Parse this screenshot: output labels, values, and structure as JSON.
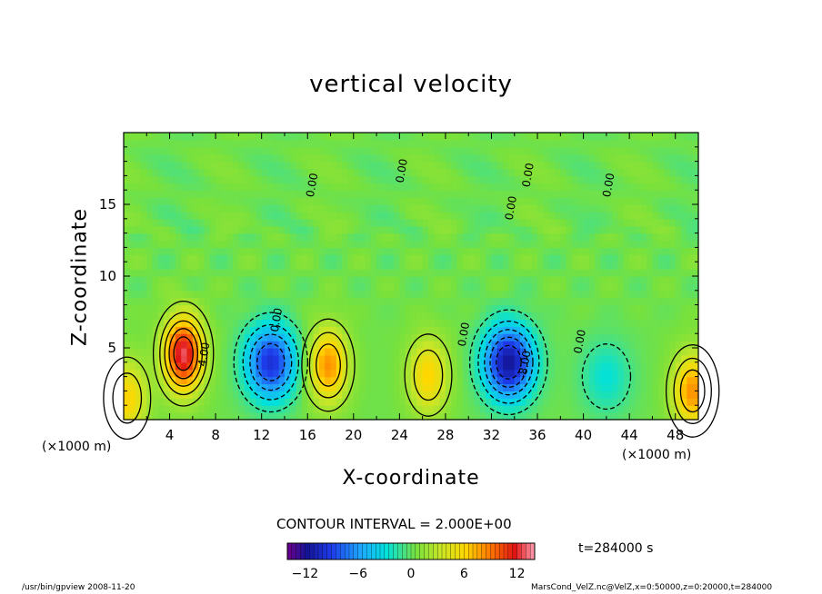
{
  "chart_data": {
    "type": "heatmap",
    "title": "vertical velocity",
    "xlabel": "X-coordinate",
    "ylabel": "Z-coordinate",
    "x_unit_left": "(×1000 m)",
    "x_unit_right": "(×1000 m)",
    "xlim": [
      0,
      50
    ],
    "ylim": [
      0,
      20
    ],
    "x_ticks": [
      4,
      8,
      12,
      16,
      20,
      24,
      28,
      32,
      36,
      40,
      44,
      48
    ],
    "y_ticks": [
      5,
      10,
      15
    ],
    "contour_interval_text": "CONTOUR INTERVAL = 2.000E+00",
    "colorbar_range": [
      -14,
      14
    ],
    "colorbar_ticks": [
      -12,
      -6,
      0,
      6,
      12
    ],
    "time_label": "t=284000 s",
    "contour_labels": [
      {
        "text": "4.00",
        "x": 7.3,
        "y": 4.5
      },
      {
        "text": "0.00",
        "x": 13.6,
        "y": 6.9
      },
      {
        "text": "0.00",
        "x": 29.9,
        "y": 5.9
      },
      {
        "text": "-8.00",
        "x": 35.2,
        "y": 3.8
      },
      {
        "text": "0.00",
        "x": 40.0,
        "y": 5.4
      },
      {
        "text": "0.00",
        "x": 24.5,
        "y": 17.3
      },
      {
        "text": "0.00",
        "x": 16.7,
        "y": 16.3
      },
      {
        "text": "0.00",
        "x": 42.5,
        "y": 16.3
      },
      {
        "text": "0.00",
        "x": 34.0,
        "y": 14.7
      },
      {
        "text": "0.00",
        "x": 35.5,
        "y": 17.0
      }
    ],
    "features": [
      {
        "kind": "updraft",
        "x": 5.2,
        "z": 4.6,
        "peak": 12.5
      },
      {
        "kind": "downdraft",
        "x": 12.8,
        "z": 4.0,
        "peak": -10.0
      },
      {
        "kind": "updraft",
        "x": 17.8,
        "z": 3.8,
        "peak": 8.0
      },
      {
        "kind": "updraft",
        "x": 26.5,
        "z": 3.1,
        "peak": 6.0
      },
      {
        "kind": "downdraft",
        "x": 33.5,
        "z": 4.0,
        "peak": -12.0
      },
      {
        "kind": "downdraft",
        "x": 42.0,
        "z": 3.0,
        "peak": -3.0
      },
      {
        "kind": "updraft",
        "x": 49.5,
        "z": 2.0,
        "peak": 8.0
      },
      {
        "kind": "updraft",
        "x": 0.3,
        "z": 1.5,
        "peak": 6.0
      }
    ],
    "grid": false,
    "legend_position": "bottom-center"
  },
  "footer_left": "/usr/bin/gpview   2008-11-20",
  "footer_right": "MarsCond_VelZ.nc@VelZ,x=0:50000,z=0:20000,t=284000"
}
